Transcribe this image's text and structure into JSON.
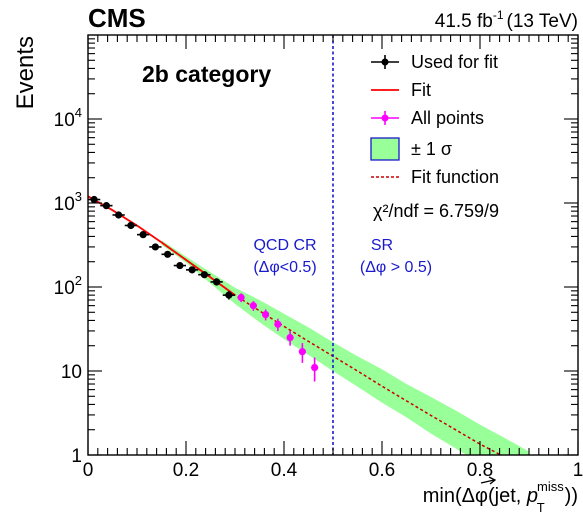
{
  "chart_data": {
    "type": "scatter",
    "experiment": "CMS",
    "lumi": {
      "value": "41.5 fb",
      "exponent": "-1",
      "energy": "(13 TeV)"
    },
    "category_label": "2b category",
    "xlabel": {
      "prefix": "min(Δφ(jet, ",
      "vector_symbol": "p",
      "subscript": "T",
      "superscript": "miss",
      "suffix": "))"
    },
    "ylabel": "Events",
    "xlim": [
      0,
      1.0
    ],
    "ylim": [
      1,
      100000
    ],
    "y_scale": "log",
    "x_ticks": [
      {
        "value": 0,
        "label": "0"
      },
      {
        "value": 0.2,
        "label": "0.2"
      },
      {
        "value": 0.4,
        "label": "0.4"
      },
      {
        "value": 0.6,
        "label": "0.6"
      },
      {
        "value": 0.8,
        "label": "0.8"
      },
      {
        "value": 1.0,
        "label": "1"
      }
    ],
    "y_ticks": [
      {
        "value": 1,
        "base": "1",
        "exp": ""
      },
      {
        "value": 10,
        "base": "10",
        "exp": ""
      },
      {
        "value": 100,
        "base": "10",
        "exp": "2"
      },
      {
        "value": 1000,
        "base": "10",
        "exp": "3"
      },
      {
        "value": 10000,
        "base": "10",
        "exp": "4"
      }
    ],
    "divider_x": 0.5,
    "region_labels": {
      "qcd_cr": {
        "line1": "QCD CR",
        "line2": "(Δφ<0.5)"
      },
      "sr": {
        "line1": "SR",
        "line2": "(Δφ > 0.5)"
      }
    },
    "legend": {
      "placement": "top-right",
      "entries": [
        {
          "id": "used",
          "label": "Used for fit"
        },
        {
          "id": "fit",
          "label": "Fit"
        },
        {
          "id": "all",
          "label": "All points"
        },
        {
          "id": "band",
          "label": "± 1 σ"
        },
        {
          "id": "func",
          "label": "Fit function"
        }
      ],
      "chi2_text": "χ²/ndf = 6.759/9"
    },
    "series": [
      {
        "name": "Used for fit",
        "color": "#000000",
        "x": [
          0.0125,
          0.0375,
          0.0625,
          0.0875,
          0.1125,
          0.1375,
          0.1625,
          0.1875,
          0.2125,
          0.2375,
          0.2625,
          0.2875
        ],
        "y": [
          1100,
          930,
          720,
          540,
          420,
          300,
          245,
          180,
          160,
          140,
          115,
          80
        ],
        "yerr": [
          35,
          30,
          27,
          23,
          20,
          17,
          15,
          13,
          12,
          12,
          11,
          9
        ]
      },
      {
        "name": "All points",
        "color": "#ff00ff",
        "x": [
          0.3125,
          0.3375,
          0.3625,
          0.3875,
          0.4125,
          0.4375,
          0.4625
        ],
        "y": [
          75,
          60,
          47,
          36,
          25,
          17,
          11
        ],
        "yerr": [
          9,
          8,
          7,
          6,
          5,
          4.5,
          3.5
        ]
      }
    ],
    "fit_curve": {
      "name": "Fit",
      "color": "#ff0000",
      "x": [
        0,
        0.05,
        0.1,
        0.15,
        0.2,
        0.25,
        0.3
      ],
      "y": [
        1200,
        820,
        540,
        340,
        210,
        130,
        80
      ]
    },
    "fit_function": {
      "name": "Fit function",
      "color": "#cc0000",
      "x": [
        0.15,
        0.2,
        0.25,
        0.3,
        0.35,
        0.4,
        0.45,
        0.5,
        0.55,
        0.6,
        0.65,
        0.7,
        0.75,
        0.8,
        0.85,
        0.9
      ],
      "y": [
        340,
        210,
        130,
        80,
        52,
        34,
        22.5,
        15,
        10,
        6.6,
        4.4,
        2.95,
        2.0,
        1.35,
        0.95,
        0.65
      ]
    },
    "band": {
      "name": "± 1 σ",
      "color": "#99ff99",
      "x": [
        0.15,
        0.2,
        0.25,
        0.3,
        0.35,
        0.4,
        0.45,
        0.5,
        0.55,
        0.6,
        0.65,
        0.7,
        0.75,
        0.8,
        0.85,
        0.9
      ],
      "lower": [
        320,
        195,
        110,
        63,
        38,
        24,
        15.5,
        10,
        6.5,
        4.2,
        2.8,
        1.8,
        1.2,
        0.8,
        0.55,
        0.38
      ],
      "upper": [
        360,
        230,
        150,
        98,
        70,
        48,
        33,
        22,
        15,
        10.5,
        7,
        4.9,
        3.4,
        2.3,
        1.6,
        1.1
      ]
    }
  }
}
